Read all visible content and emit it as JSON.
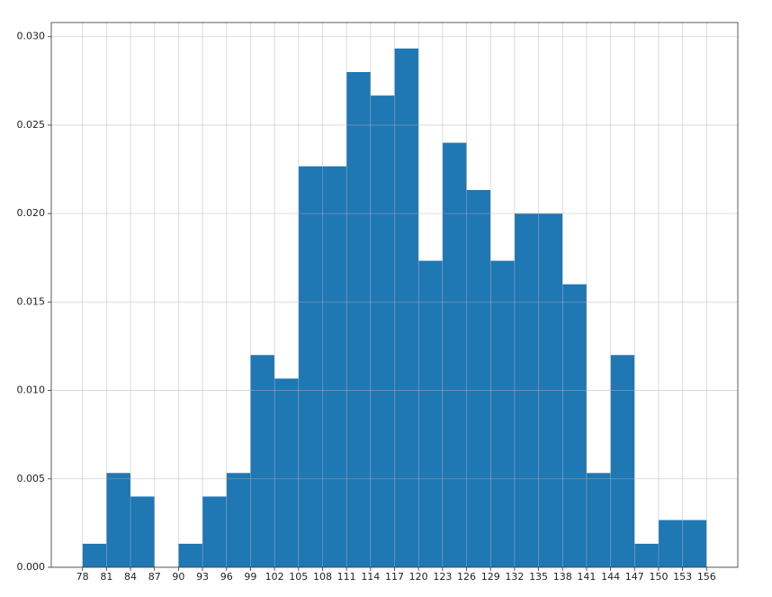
{
  "chart_data": {
    "type": "histogram",
    "bins": [
      78,
      81,
      84,
      87,
      90,
      93,
      96,
      99,
      102,
      105,
      108,
      111,
      114,
      117,
      120,
      123,
      126,
      129,
      132,
      135,
      138,
      141,
      144,
      147,
      150,
      153,
      156
    ],
    "values": [
      0.00133,
      0.00533,
      0.004,
      0,
      0.00133,
      0.004,
      0.00533,
      0.012,
      0.01067,
      0.02267,
      0.02267,
      0.028,
      0.02667,
      0.02933,
      0.01733,
      0.024,
      0.02133,
      0.01733,
      0.02,
      0.02,
      0.016,
      0.00533,
      0.012,
      0.00133,
      0.00267,
      0.00267
    ],
    "color": "#1f77b4",
    "xlim": [
      74.1,
      159.9
    ],
    "ylim": [
      0,
      0.0308
    ],
    "xticks": [
      78,
      81,
      84,
      87,
      90,
      93,
      96,
      99,
      102,
      105,
      108,
      111,
      114,
      117,
      120,
      123,
      126,
      129,
      132,
      135,
      138,
      141,
      144,
      147,
      150,
      153,
      156
    ],
    "yticks": [
      {
        "value": 0,
        "label": "0.000"
      },
      {
        "value": 0.005,
        "label": "0.005"
      },
      {
        "value": 0.01,
        "label": "0.010"
      },
      {
        "value": 0.015,
        "label": "0.015"
      },
      {
        "value": 0.02,
        "label": "0.020"
      },
      {
        "value": 0.025,
        "label": "0.025"
      },
      {
        "value": 0.03,
        "label": "0.030"
      }
    ],
    "grid": true
  }
}
